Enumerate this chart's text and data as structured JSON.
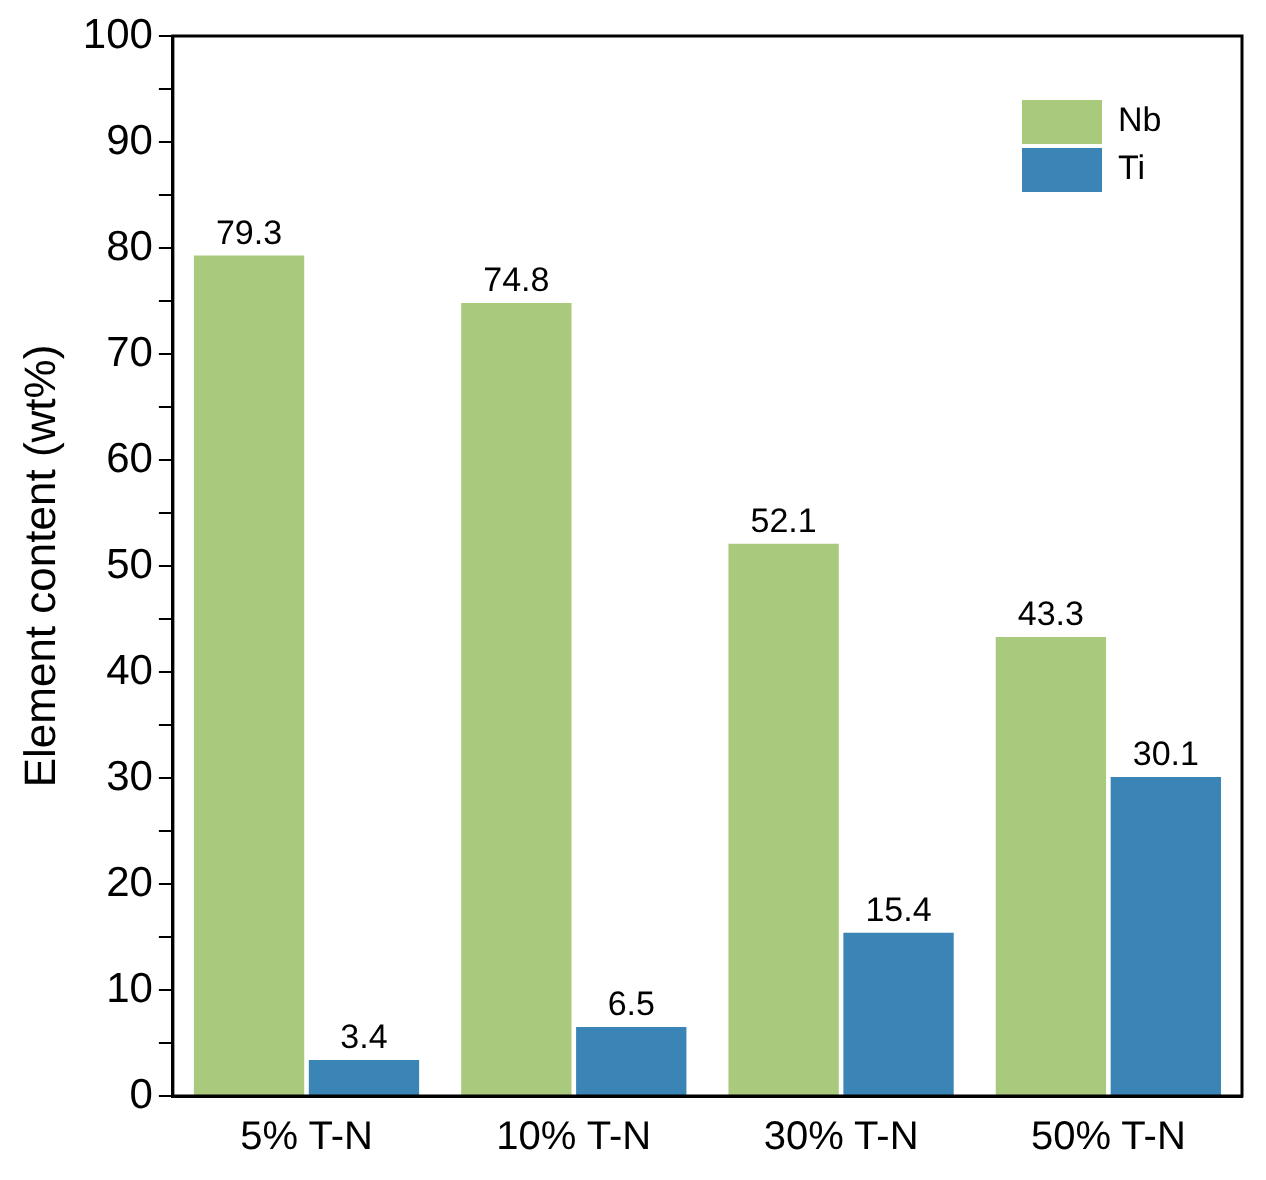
{
  "chart_data": {
    "type": "bar",
    "ylabel": "Element content (wt%)",
    "categories": [
      "5% T-N",
      "10% T-N",
      "30% T-N",
      "50% T-N"
    ],
    "series": [
      {
        "name": "Nb",
        "color": "#a9c97c",
        "values": [
          79.3,
          74.8,
          52.1,
          43.3
        ]
      },
      {
        "name": "Ti",
        "color": "#3a85b5",
        "values": [
          3.4,
          6.5,
          15.4,
          30.1
        ]
      }
    ],
    "ylim": [
      0,
      100
    ],
    "yticks": [
      0,
      {
        "value": 5,
        "label": null
      },
      10,
      {
        "value": 15,
        "label": null
      },
      20,
      {
        "value": 25,
        "label": null
      },
      30,
      {
        "value": 35,
        "label": null
      },
      40,
      {
        "value": 45,
        "label": null
      },
      50,
      {
        "value": 55,
        "label": null
      },
      60,
      {
        "value": 65,
        "label": null
      },
      70,
      {
        "value": 75,
        "label": null
      },
      80,
      {
        "value": 85,
        "label": null
      },
      90,
      {
        "value": 95,
        "label": null
      },
      100
    ],
    "grid": false,
    "legend": "top right",
    "data_labels": true
  }
}
